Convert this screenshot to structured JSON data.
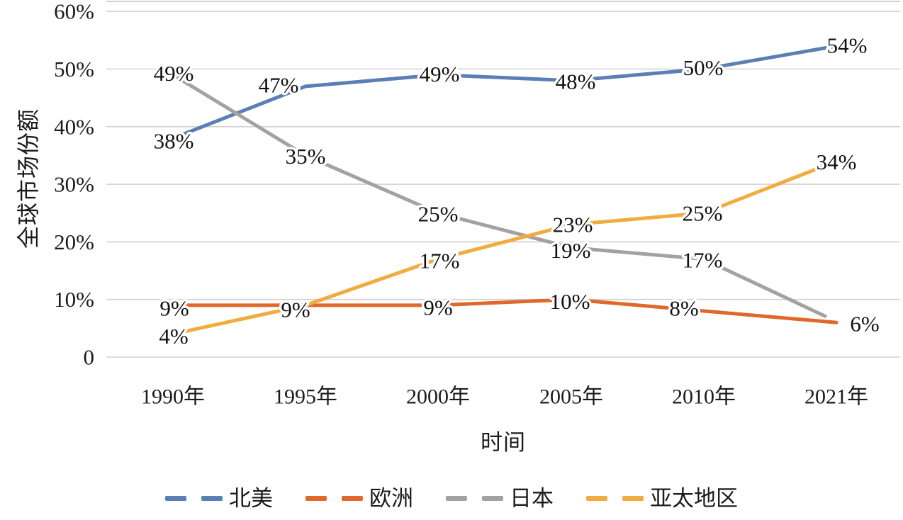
{
  "chart_data": {
    "type": "line",
    "title": "",
    "xlabel": "时间",
    "ylabel": "全球市场份额",
    "x_categories": [
      "1990年",
      "1995年",
      "2000年",
      "2005年",
      "2010年",
      "2021年"
    ],
    "y_ticks": [
      {
        "value": 60,
        "label": "60%"
      },
      {
        "value": 50,
        "label": "50%"
      },
      {
        "value": 40,
        "label": "40%"
      },
      {
        "value": 30,
        "label": "30%"
      },
      {
        "value": 20,
        "label": "20%"
      },
      {
        "value": 10,
        "label": "10%"
      },
      {
        "value": 0,
        "label": "0"
      }
    ],
    "ylim": [
      0,
      60
    ],
    "grid": "horizontal",
    "gridline_color": "#D4D0CF",
    "text_color": "#1b1b1b",
    "legend_position": "bottom",
    "series": [
      {
        "id": "north-america",
        "name": "北美",
        "color": "#5B7FB5",
        "values": [
          38,
          47,
          49,
          48,
          50,
          54
        ],
        "labels": [
          "38%",
          "47%",
          "49%",
          "48%",
          "50%",
          "54%"
        ],
        "label_offsets": [
          [
            1,
            4
          ],
          [
            -38,
            -2
          ],
          [
            2,
            -1
          ],
          [
            6,
            1
          ],
          [
            -1,
            -2
          ],
          [
            15,
            -1
          ]
        ],
        "last_point_offset": [
          0,
          0
        ]
      },
      {
        "id": "europe",
        "name": "欧洲",
        "color": "#E0682B",
        "values": [
          9,
          9,
          9,
          10,
          8,
          6
        ],
        "labels": [
          "9%",
          "9%",
          "9%",
          "10%",
          "8%",
          "6%"
        ],
        "label_offsets": [
          [
            2,
            4
          ],
          [
            -14,
            6
          ],
          [
            0,
            3
          ],
          [
            -2,
            3
          ],
          [
            -28,
            -4
          ],
          [
            40,
            2
          ]
        ],
        "last_point_offset": [
          0,
          0
        ]
      },
      {
        "id": "japan",
        "name": "日本",
        "color": "#A5A1A0",
        "values": [
          49,
          35,
          25,
          19,
          17,
          6
        ],
        "labels": [
          "49%",
          "35%",
          "25%",
          "19%",
          "17%",
          null
        ],
        "label_offsets": [
          [
            1,
            -2
          ],
          [
            0,
            1
          ],
          [
            0,
            1
          ],
          [
            -1,
            4
          ],
          [
            -2,
            1
          ],
          null
        ],
        "last_point_offset": [
          -16,
          -9
        ]
      },
      {
        "id": "asia-pacific",
        "name": "亚太地区",
        "color": "#F0AC3E",
        "values": [
          4,
          9,
          17,
          23,
          25,
          34
        ],
        "labels": [
          "4%",
          null,
          "17%",
          "23%",
          "25%",
          "34%"
        ],
        "label_offsets": [
          [
            1,
            3
          ],
          null,
          [
            2,
            2
          ],
          [
            2,
            0
          ],
          [
            -2,
            0
          ],
          [
            0,
            1
          ]
        ],
        "last_point_offset": [
          0,
          0
        ]
      }
    ]
  }
}
